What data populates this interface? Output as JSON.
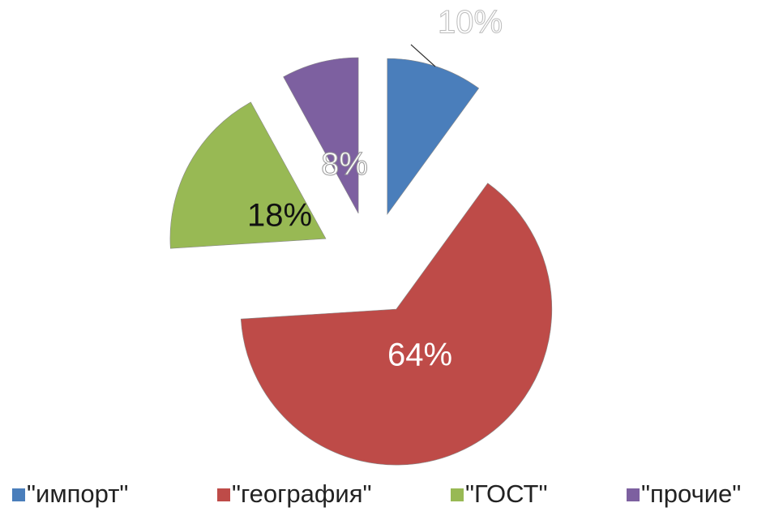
{
  "chart_data": {
    "type": "pie",
    "categories": [
      "\"импорт\"",
      "\"география\"",
      "\"ГОСТ\"",
      "\"прочие\""
    ],
    "values": [
      10,
      64,
      18,
      8
    ],
    "value_labels": [
      "10%",
      "64%",
      "18%",
      "8%"
    ],
    "colors": [
      "#4a7ebb",
      "#be4b48",
      "#98b954",
      "#7d60a0"
    ],
    "legend": "bottom"
  }
}
